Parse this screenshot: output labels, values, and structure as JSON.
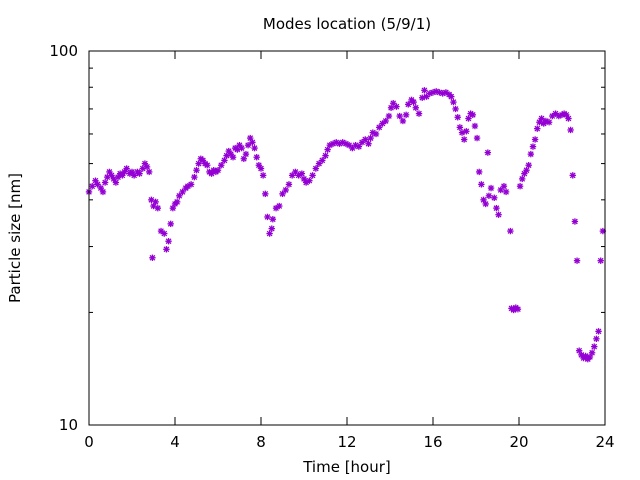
{
  "chart_data": {
    "type": "scatter",
    "title": "Modes location (5/9/1)",
    "xlabel": "Time [hour]",
    "ylabel": "Particle size [nm]",
    "xlim": [
      0,
      24
    ],
    "ylim": [
      10,
      100
    ],
    "yscale": "log",
    "grid": false,
    "legend": "none",
    "marker": "asterisk",
    "color": "#9400d3",
    "x_ticks": [
      0,
      4,
      8,
      12,
      16,
      20,
      24
    ],
    "x_tick_labels": [
      "0",
      "4",
      "8",
      "12",
      "16",
      "20",
      "24"
    ],
    "y_ticks": [
      10,
      100
    ],
    "y_tick_labels": [
      "10",
      "100"
    ],
    "points": [
      [
        0.0,
        42.0
      ],
      [
        0.15,
        43.5
      ],
      [
        0.3,
        45.0
      ],
      [
        0.4,
        44.0
      ],
      [
        0.55,
        43.0
      ],
      [
        0.65,
        42.0
      ],
      [
        0.75,
        44.5
      ],
      [
        0.85,
        46.0
      ],
      [
        0.95,
        47.5
      ],
      [
        1.05,
        46.5
      ],
      [
        1.15,
        45.5
      ],
      [
        1.25,
        44.5
      ],
      [
        1.35,
        46.0
      ],
      [
        1.45,
        47.0
      ],
      [
        1.55,
        46.5
      ],
      [
        1.65,
        47.5
      ],
      [
        1.75,
        48.5
      ],
      [
        1.9,
        47.0
      ],
      [
        2.0,
        47.5
      ],
      [
        2.1,
        46.5
      ],
      [
        2.25,
        47.5
      ],
      [
        2.35,
        47.0
      ],
      [
        2.5,
        48.5
      ],
      [
        2.6,
        50.0
      ],
      [
        2.7,
        49.0
      ],
      [
        2.8,
        47.5
      ],
      [
        2.9,
        40.0
      ],
      [
        3.0,
        38.5
      ],
      [
        3.1,
        39.5
      ],
      [
        3.2,
        38.0
      ],
      [
        2.95,
        28.0
      ],
      [
        3.35,
        33.0
      ],
      [
        3.5,
        32.5
      ],
      [
        3.6,
        29.5
      ],
      [
        3.7,
        31.0
      ],
      [
        3.8,
        34.5
      ],
      [
        3.9,
        38.0
      ],
      [
        4.0,
        39.0
      ],
      [
        4.1,
        39.5
      ],
      [
        4.2,
        41.0
      ],
      [
        4.35,
        42.0
      ],
      [
        4.5,
        43.0
      ],
      [
        4.6,
        43.5
      ],
      [
        4.75,
        44.0
      ],
      [
        4.9,
        46.0
      ],
      [
        5.0,
        48.0
      ],
      [
        5.1,
        50.0
      ],
      [
        5.2,
        51.5
      ],
      [
        5.3,
        51.0
      ],
      [
        5.4,
        50.0
      ],
      [
        5.5,
        49.5
      ],
      [
        5.6,
        47.5
      ],
      [
        5.7,
        47.0
      ],
      [
        5.8,
        48.0
      ],
      [
        5.9,
        47.5
      ],
      [
        6.0,
        48.0
      ],
      [
        6.15,
        49.5
      ],
      [
        6.3,
        51.0
      ],
      [
        6.4,
        52.5
      ],
      [
        6.5,
        54.0
      ],
      [
        6.6,
        53.0
      ],
      [
        6.7,
        52.0
      ],
      [
        6.8,
        55.0
      ],
      [
        6.9,
        54.5
      ],
      [
        7.0,
        56.0
      ],
      [
        7.1,
        55.0
      ],
      [
        7.2,
        51.5
      ],
      [
        7.3,
        53.0
      ],
      [
        7.4,
        56.0
      ],
      [
        7.5,
        58.5
      ],
      [
        7.6,
        57.0
      ],
      [
        7.7,
        55.0
      ],
      [
        7.8,
        52.0
      ],
      [
        7.9,
        49.5
      ],
      [
        8.0,
        48.5
      ],
      [
        8.1,
        46.5
      ],
      [
        8.2,
        41.5
      ],
      [
        8.3,
        36.0
      ],
      [
        8.4,
        32.5
      ],
      [
        8.5,
        33.5
      ],
      [
        8.55,
        35.5
      ],
      [
        8.7,
        38.0
      ],
      [
        8.85,
        38.5
      ],
      [
        9.0,
        41.5
      ],
      [
        9.15,
        42.5
      ],
      [
        9.3,
        44.0
      ],
      [
        9.45,
        46.5
      ],
      [
        9.6,
        47.5
      ],
      [
        9.75,
        46.5
      ],
      [
        9.9,
        47.0
      ],
      [
        10.0,
        45.5
      ],
      [
        10.1,
        44.5
      ],
      [
        10.25,
        45.0
      ],
      [
        10.4,
        46.5
      ],
      [
        10.55,
        48.5
      ],
      [
        10.7,
        50.0
      ],
      [
        10.85,
        51.0
      ],
      [
        11.0,
        52.5
      ],
      [
        11.1,
        54.5
      ],
      [
        11.2,
        56.0
      ],
      [
        11.35,
        56.5
      ],
      [
        11.5,
        57.0
      ],
      [
        11.65,
        56.5
      ],
      [
        11.8,
        57.0
      ],
      [
        11.95,
        56.5
      ],
      [
        12.1,
        56.0
      ],
      [
        12.25,
        55.0
      ],
      [
        12.4,
        56.0
      ],
      [
        12.55,
        55.5
      ],
      [
        12.7,
        57.0
      ],
      [
        12.85,
        58.0
      ],
      [
        13.0,
        56.5
      ],
      [
        13.1,
        58.5
      ],
      [
        13.2,
        60.5
      ],
      [
        13.35,
        60.0
      ],
      [
        13.5,
        62.5
      ],
      [
        13.65,
        64.0
      ],
      [
        13.8,
        65.0
      ],
      [
        13.95,
        67.0
      ],
      [
        14.05,
        70.5
      ],
      [
        14.15,
        72.5
      ],
      [
        14.3,
        71.0
      ],
      [
        14.45,
        67.0
      ],
      [
        14.6,
        65.0
      ],
      [
        14.75,
        67.5
      ],
      [
        14.85,
        72.0
      ],
      [
        15.0,
        74.0
      ],
      [
        15.1,
        73.0
      ],
      [
        15.2,
        70.5
      ],
      [
        15.35,
        68.0
      ],
      [
        15.5,
        75.0
      ],
      [
        15.6,
        78.5
      ],
      [
        15.7,
        75.5
      ],
      [
        15.85,
        77.0
      ],
      [
        16.0,
        77.5
      ],
      [
        16.15,
        78.0
      ],
      [
        16.3,
        77.5
      ],
      [
        16.45,
        77.0
      ],
      [
        16.6,
        77.5
      ],
      [
        16.75,
        76.5
      ],
      [
        16.85,
        75.5
      ],
      [
        16.95,
        73.0
      ],
      [
        17.05,
        70.0
      ],
      [
        17.15,
        66.5
      ],
      [
        17.25,
        62.5
      ],
      [
        17.35,
        60.5
      ],
      [
        17.45,
        58.0
      ],
      [
        17.55,
        61.0
      ],
      [
        17.65,
        66.0
      ],
      [
        17.75,
        68.0
      ],
      [
        17.85,
        67.5
      ],
      [
        17.95,
        63.0
      ],
      [
        18.05,
        58.5
      ],
      [
        18.15,
        47.5
      ],
      [
        18.25,
        44.0
      ],
      [
        18.35,
        40.0
      ],
      [
        18.45,
        39.0
      ],
      [
        18.6,
        41.0
      ],
      [
        18.7,
        43.0
      ],
      [
        18.85,
        40.5
      ],
      [
        18.95,
        38.0
      ],
      [
        19.05,
        36.5
      ],
      [
        19.15,
        42.5
      ],
      [
        19.3,
        43.5
      ],
      [
        19.4,
        42.0
      ],
      [
        18.55,
        53.5
      ],
      [
        19.6,
        33.0
      ],
      [
        19.65,
        20.5
      ],
      [
        19.75,
        20.3
      ],
      [
        19.85,
        20.6
      ],
      [
        19.95,
        20.4
      ],
      [
        20.05,
        43.5
      ],
      [
        20.15,
        45.5
      ],
      [
        20.25,
        47.0
      ],
      [
        20.35,
        48.0
      ],
      [
        20.45,
        49.5
      ],
      [
        20.55,
        53.0
      ],
      [
        20.65,
        55.5
      ],
      [
        20.75,
        58.0
      ],
      [
        20.85,
        62.0
      ],
      [
        20.95,
        64.5
      ],
      [
        21.05,
        66.0
      ],
      [
        21.15,
        64.0
      ],
      [
        21.25,
        65.0
      ],
      [
        21.4,
        64.5
      ],
      [
        21.55,
        67.0
      ],
      [
        21.7,
        68.0
      ],
      [
        21.85,
        67.0
      ],
      [
        22.0,
        67.5
      ],
      [
        22.1,
        68.0
      ],
      [
        22.2,
        67.5
      ],
      [
        22.3,
        66.0
      ],
      [
        22.4,
        61.5
      ],
      [
        22.5,
        46.5
      ],
      [
        22.6,
        35.0
      ],
      [
        22.7,
        27.5
      ],
      [
        22.8,
        15.8
      ],
      [
        22.9,
        15.4
      ],
      [
        23.0,
        15.1
      ],
      [
        23.1,
        15.3
      ],
      [
        23.2,
        15.0
      ],
      [
        23.3,
        15.2
      ],
      [
        23.4,
        15.6
      ],
      [
        23.5,
        16.2
      ],
      [
        23.6,
        17.0
      ],
      [
        23.7,
        17.8
      ],
      [
        23.8,
        27.5
      ],
      [
        23.9,
        33.0
      ]
    ]
  }
}
